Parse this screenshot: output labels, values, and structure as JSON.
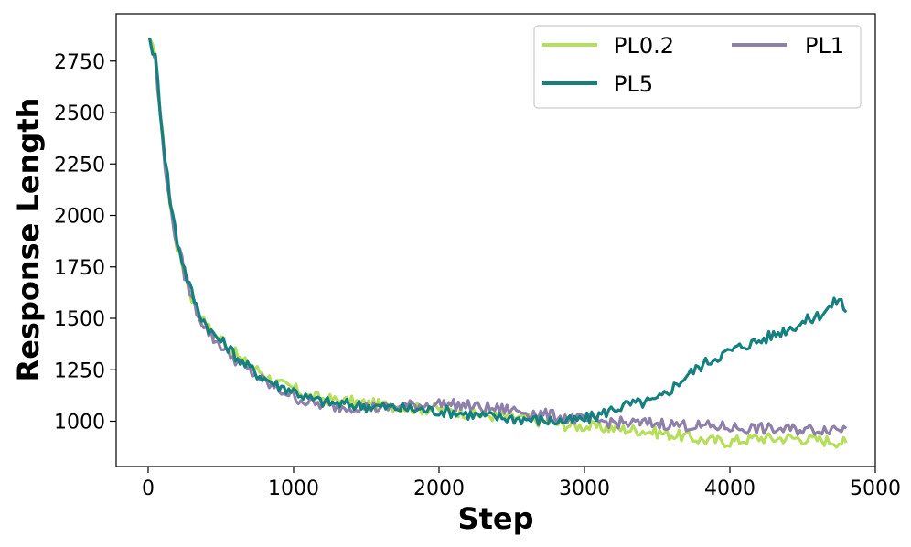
{
  "chart_data": {
    "type": "line",
    "title": "",
    "xlabel": "Step",
    "ylabel": "Response Length",
    "xlim": [
      -220,
      5000
    ],
    "ylim": [
      780,
      2980
    ],
    "xticks": [
      0,
      1000,
      2000,
      3000,
      4000,
      5000
    ],
    "yticks": [
      1000,
      1250,
      1500,
      1750,
      2000,
      2250,
      2500,
      2750
    ],
    "grid": false,
    "legend_position": "top-right",
    "legend_columns": 2,
    "series": [
      {
        "name": "PL0.2",
        "color": "#b5de5c",
        "points": [
          [
            10,
            2860
          ],
          [
            50,
            2750
          ],
          [
            100,
            2380
          ],
          [
            150,
            2050
          ],
          [
            200,
            1850
          ],
          [
            250,
            1720
          ],
          [
            300,
            1600
          ],
          [
            350,
            1520
          ],
          [
            400,
            1470
          ],
          [
            450,
            1420
          ],
          [
            500,
            1400
          ],
          [
            550,
            1370
          ],
          [
            600,
            1330
          ],
          [
            650,
            1290
          ],
          [
            700,
            1280
          ],
          [
            750,
            1250
          ],
          [
            800,
            1230
          ],
          [
            850,
            1200
          ],
          [
            900,
            1180
          ],
          [
            950,
            1170
          ],
          [
            1000,
            1160
          ],
          [
            1100,
            1120
          ],
          [
            1200,
            1110
          ],
          [
            1300,
            1100
          ],
          [
            1400,
            1095
          ],
          [
            1500,
            1085
          ],
          [
            1600,
            1080
          ],
          [
            1700,
            1075
          ],
          [
            1800,
            1065
          ],
          [
            1900,
            1060
          ],
          [
            2000,
            1060
          ],
          [
            2100,
            1050
          ],
          [
            2200,
            1040
          ],
          [
            2300,
            1030
          ],
          [
            2400,
            1025
          ],
          [
            2500,
            1020
          ],
          [
            2600,
            1010
          ],
          [
            2700,
            1000
          ],
          [
            2800,
            990
          ],
          [
            2900,
            980
          ],
          [
            3000,
            975
          ],
          [
            3100,
            970
          ],
          [
            3200,
            965
          ],
          [
            3300,
            960
          ],
          [
            3400,
            955
          ],
          [
            3500,
            945
          ],
          [
            3600,
            935
          ],
          [
            3700,
            925
          ],
          [
            3800,
            910
          ],
          [
            3900,
            905
          ],
          [
            4000,
            900
          ],
          [
            4100,
            910
          ],
          [
            4200,
            920
          ],
          [
            4300,
            915
          ],
          [
            4400,
            920
          ],
          [
            4500,
            915
          ],
          [
            4600,
            910
          ],
          [
            4700,
            905
          ],
          [
            4800,
            895
          ]
        ]
      },
      {
        "name": "PL5",
        "color": "#15807f",
        "points": [
          [
            10,
            2860
          ],
          [
            50,
            2760
          ],
          [
            100,
            2400
          ],
          [
            150,
            2080
          ],
          [
            200,
            1880
          ],
          [
            250,
            1740
          ],
          [
            300,
            1620
          ],
          [
            350,
            1530
          ],
          [
            400,
            1470
          ],
          [
            450,
            1420
          ],
          [
            500,
            1390
          ],
          [
            550,
            1360
          ],
          [
            600,
            1320
          ],
          [
            650,
            1280
          ],
          [
            700,
            1260
          ],
          [
            750,
            1230
          ],
          [
            800,
            1210
          ],
          [
            850,
            1190
          ],
          [
            900,
            1170
          ],
          [
            950,
            1160
          ],
          [
            1000,
            1150
          ],
          [
            1100,
            1110
          ],
          [
            1200,
            1095
          ],
          [
            1300,
            1085
          ],
          [
            1400,
            1080
          ],
          [
            1500,
            1075
          ],
          [
            1600,
            1070
          ],
          [
            1700,
            1065
          ],
          [
            1800,
            1060
          ],
          [
            1900,
            1055
          ],
          [
            2000,
            1050
          ],
          [
            2100,
            1045
          ],
          [
            2200,
            1035
          ],
          [
            2300,
            1025
          ],
          [
            2400,
            1020
          ],
          [
            2500,
            1015
          ],
          [
            2600,
            1010
          ],
          [
            2700,
            1005
          ],
          [
            2800,
            1000
          ],
          [
            2900,
            1000
          ],
          [
            3000,
            1010
          ],
          [
            3100,
            1030
          ],
          [
            3200,
            1060
          ],
          [
            3300,
            1080
          ],
          [
            3400,
            1090
          ],
          [
            3500,
            1100
          ],
          [
            3600,
            1160
          ],
          [
            3700,
            1220
          ],
          [
            3800,
            1270
          ],
          [
            3900,
            1310
          ],
          [
            4000,
            1340
          ],
          [
            4100,
            1370
          ],
          [
            4200,
            1390
          ],
          [
            4300,
            1420
          ],
          [
            4400,
            1450
          ],
          [
            4500,
            1480
          ],
          [
            4600,
            1510
          ],
          [
            4700,
            1560
          ],
          [
            4750,
            1600
          ],
          [
            4800,
            1530
          ]
        ]
      },
      {
        "name": "PL1",
        "color": "#8e80a8",
        "points": [
          [
            10,
            2860
          ],
          [
            50,
            2740
          ],
          [
            100,
            2360
          ],
          [
            150,
            2050
          ],
          [
            200,
            1860
          ],
          [
            250,
            1720
          ],
          [
            300,
            1600
          ],
          [
            350,
            1510
          ],
          [
            400,
            1450
          ],
          [
            450,
            1400
          ],
          [
            500,
            1370
          ],
          [
            550,
            1330
          ],
          [
            600,
            1300
          ],
          [
            650,
            1270
          ],
          [
            700,
            1240
          ],
          [
            750,
            1220
          ],
          [
            800,
            1190
          ],
          [
            850,
            1170
          ],
          [
            900,
            1150
          ],
          [
            950,
            1140
          ],
          [
            1000,
            1120
          ],
          [
            1100,
            1090
          ],
          [
            1200,
            1080
          ],
          [
            1300,
            1070
          ],
          [
            1400,
            1070
          ],
          [
            1500,
            1070
          ],
          [
            1600,
            1065
          ],
          [
            1700,
            1070
          ],
          [
            1800,
            1075
          ],
          [
            1900,
            1080
          ],
          [
            2000,
            1085
          ],
          [
            2100,
            1080
          ],
          [
            2200,
            1075
          ],
          [
            2300,
            1065
          ],
          [
            2400,
            1060
          ],
          [
            2500,
            1055
          ],
          [
            2600,
            1045
          ],
          [
            2700,
            1035
          ],
          [
            2800,
            1025
          ],
          [
            2900,
            1015
          ],
          [
            3000,
            1005
          ],
          [
            3100,
            1000
          ],
          [
            3200,
            995
          ],
          [
            3300,
            990
          ],
          [
            3400,
            990
          ],
          [
            3500,
            990
          ],
          [
            3600,
            985
          ],
          [
            3700,
            980
          ],
          [
            3800,
            975
          ],
          [
            3900,
            975
          ],
          [
            4000,
            970
          ],
          [
            4100,
            965
          ],
          [
            4200,
            965
          ],
          [
            4300,
            960
          ],
          [
            4400,
            960
          ],
          [
            4500,
            960
          ],
          [
            4600,
            960
          ],
          [
            4700,
            965
          ],
          [
            4800,
            965
          ]
        ]
      }
    ]
  }
}
